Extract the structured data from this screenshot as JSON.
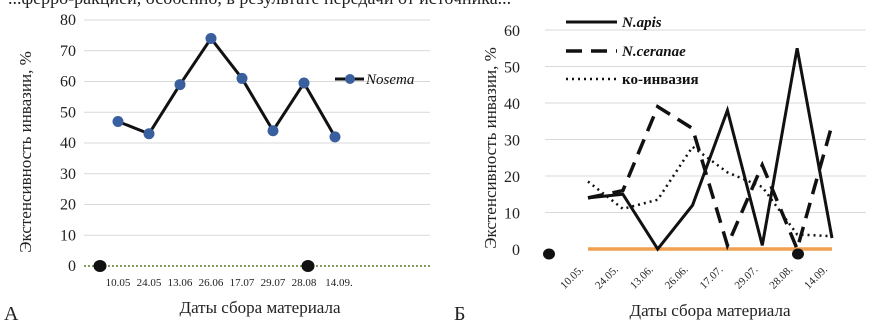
{
  "top_text": "...ферро-ракцией, особенно, в результате передачи от источника...",
  "chart_data": [
    {
      "type": "line",
      "panel_label": "А",
      "xlabel": "Даты сбора материала",
      "ylabel": "Экстенсивность инвазии, %",
      "ylim": [
        0,
        80
      ],
      "yticks": [
        0,
        10,
        20,
        30,
        40,
        50,
        60,
        70,
        80
      ],
      "categories": [
        "10.05",
        "24.05",
        "13.06",
        "26.06",
        "17.07",
        "29.07",
        "28.08",
        "14.09."
      ],
      "series": [
        {
          "name": "Nosema",
          "values": [
            47,
            43,
            59,
            74,
            61,
            44,
            59.5,
            42
          ],
          "color": "#111111",
          "marker_color": "#3a5f9e"
        }
      ],
      "baseline_color": "#5a7a2a",
      "grid": true,
      "legend_position": "right"
    },
    {
      "type": "line",
      "panel_label": "Б",
      "xlabel": "Даты сбора материала",
      "ylabel": "Экстенсивность инвазии, %",
      "ylim": [
        0,
        60
      ],
      "yticks": [
        0,
        10,
        20,
        30,
        40,
        50,
        60
      ],
      "categories": [
        "10.05.",
        "24.05.",
        "13.06.",
        "26.06.",
        "17.07.",
        "29.07.",
        "28.08.",
        "14.09."
      ],
      "series": [
        {
          "name": "N.apis",
          "values": [
            14,
            15,
            0,
            12,
            38,
            1,
            55,
            3
          ],
          "style": "solid"
        },
        {
          "name": "N.ceranae",
          "values": [
            14,
            16,
            39,
            33,
            1,
            23,
            0,
            34
          ],
          "style": "dashed"
        },
        {
          "name": "ко-инвазия",
          "values": [
            18.5,
            11,
            13.5,
            28,
            21,
            17,
            4,
            3.5
          ],
          "style": "dotted"
        }
      ],
      "baseline_color": "#f0a050",
      "grid": true,
      "legend_position": "top-left"
    }
  ]
}
